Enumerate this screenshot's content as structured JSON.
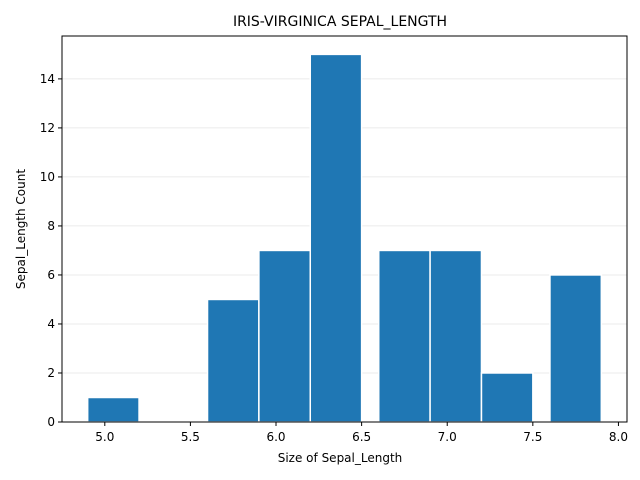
{
  "chart_data": {
    "type": "bar",
    "title": "IRIS-VIRGINICA SEPAL_LENGTH",
    "xlabel": "Size of Sepal_Length",
    "ylabel": "Sepal_Length Count",
    "bins": [
      {
        "x0": 4.9,
        "x1": 5.2,
        "count": 1
      },
      {
        "x0": 5.2,
        "x1": 5.5,
        "count": 0
      },
      {
        "x0": 5.6,
        "x1": 5.9,
        "count": 5
      },
      {
        "x0": 5.9,
        "x1": 6.2,
        "count": 7
      },
      {
        "x0": 6.2,
        "x1": 6.5,
        "count": 15
      },
      {
        "x0": 6.6,
        "x1": 6.9,
        "count": 7
      },
      {
        "x0": 6.9,
        "x1": 7.2,
        "count": 7
      },
      {
        "x0": 7.2,
        "x1": 7.5,
        "count": 2
      },
      {
        "x0": 7.6,
        "x1": 7.9,
        "count": 6
      }
    ],
    "xlim": [
      4.75,
      8.05
    ],
    "ylim": [
      0,
      15.75
    ],
    "xticks": [
      "5.0",
      "5.5",
      "6.0",
      "6.5",
      "7.0",
      "7.5",
      "8.0"
    ],
    "yticks": [
      "0",
      "2",
      "4",
      "6",
      "8",
      "10",
      "12",
      "14"
    ],
    "bar_color": "#1f77b4",
    "grid": "y-only"
  }
}
